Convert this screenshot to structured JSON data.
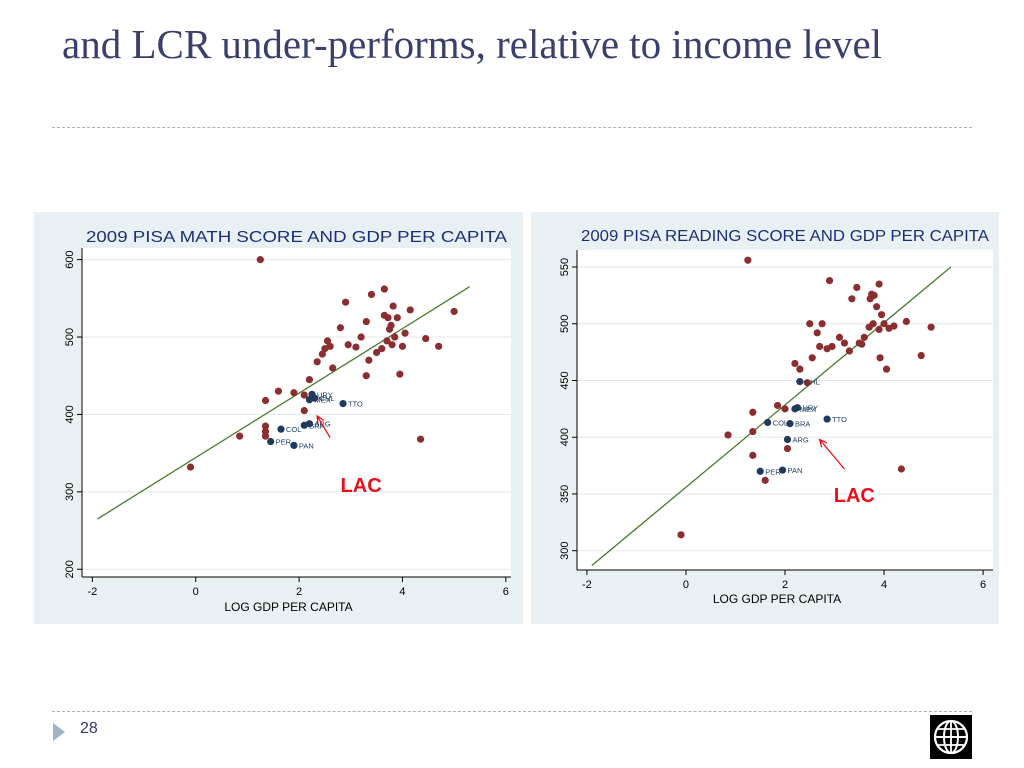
{
  "slide": {
    "title": "and LCR under-performs, relative to income level",
    "page_number": "28"
  },
  "icons": {
    "nav": "play-arrow-icon",
    "logo": "world-bank-globe-icon"
  },
  "colors": {
    "point": "#8b2e30",
    "lac_point": "#1f3a5f",
    "fit_line": "#4a7a2a",
    "annotation": "#e8101a"
  },
  "chart_data": [
    {
      "type": "scatter",
      "title": "2009 PISA MATH SCORE AND GDP PER CAPITA",
      "xlabel": "LOG GDP PER CAPITA",
      "ylabel": "",
      "xlim": [
        -2.2,
        6.1
      ],
      "ylim": [
        190,
        615
      ],
      "xticks": [
        -2,
        0,
        2,
        4,
        6
      ],
      "yticks": [
        200,
        300,
        400,
        500,
        600
      ],
      "grid": true,
      "fit_line": [
        [
          -1.9,
          265
        ],
        [
          5.3,
          565
        ]
      ],
      "annotation": {
        "text": "LAC",
        "x": 3.2,
        "y": 300,
        "arrow_from": [
          2.6,
          370
        ],
        "arrow_to": [
          2.35,
          398
        ]
      },
      "points": [
        [
          1.25,
          600
        ],
        [
          -0.1,
          332
        ],
        [
          0.85,
          372
        ],
        [
          1.35,
          418
        ],
        [
          1.35,
          385
        ],
        [
          1.35,
          378
        ],
        [
          1.35,
          372
        ],
        [
          1.6,
          430
        ],
        [
          1.9,
          428
        ],
        [
          2.1,
          425
        ],
        [
          2.1,
          405
        ],
        [
          2.2,
          445
        ],
        [
          2.35,
          468
        ],
        [
          2.45,
          478
        ],
        [
          2.5,
          485
        ],
        [
          2.55,
          495
        ],
        [
          2.6,
          488
        ],
        [
          2.65,
          460
        ],
        [
          2.8,
          512
        ],
        [
          2.9,
          545
        ],
        [
          2.95,
          490
        ],
        [
          3.1,
          487
        ],
        [
          3.2,
          500
        ],
        [
          3.3,
          450
        ],
        [
          3.3,
          520
        ],
        [
          3.35,
          470
        ],
        [
          3.4,
          555
        ],
        [
          3.5,
          480
        ],
        [
          3.6,
          485
        ],
        [
          3.65,
          562
        ],
        [
          3.65,
          528
        ],
        [
          3.7,
          495
        ],
        [
          3.72,
          525
        ],
        [
          3.75,
          510
        ],
        [
          3.78,
          515
        ],
        [
          3.8,
          490
        ],
        [
          3.82,
          540
        ],
        [
          3.85,
          500
        ],
        [
          3.9,
          525
        ],
        [
          3.95,
          452
        ],
        [
          4.0,
          488
        ],
        [
          4.05,
          505
        ],
        [
          4.15,
          535
        ],
        [
          4.35,
          368
        ],
        [
          4.45,
          498
        ],
        [
          4.7,
          488
        ],
        [
          5.0,
          533
        ]
      ],
      "lac_points": [
        {
          "label": "URY",
          "x": 2.25,
          "y": 426
        },
        {
          "label": "MEX",
          "x": 2.2,
          "y": 419
        },
        {
          "label": "CHL",
          "x": 2.3,
          "y": 421
        },
        {
          "label": "ARG",
          "x": 2.2,
          "y": 388
        },
        {
          "label": "BRA",
          "x": 2.1,
          "y": 386
        },
        {
          "label": "TTO",
          "x": 2.85,
          "y": 414
        },
        {
          "label": "COL",
          "x": 1.65,
          "y": 381
        },
        {
          "label": "PER",
          "x": 1.45,
          "y": 365
        },
        {
          "label": "PAN",
          "x": 1.9,
          "y": 360
        }
      ]
    },
    {
      "type": "scatter",
      "title": "2009 PISA READING SCORE AND GDP PER CAPITA",
      "xlabel": "LOG GDP PER CAPITA",
      "ylabel": "",
      "xlim": [
        -2.2,
        6.2
      ],
      "ylim": [
        283,
        565
      ],
      "xticks": [
        -2,
        0,
        2,
        4,
        6
      ],
      "yticks": [
        300,
        350,
        400,
        450,
        500,
        550
      ],
      "grid": true,
      "fit_line": [
        [
          -1.9,
          287
        ],
        [
          5.35,
          550
        ]
      ],
      "annotation": {
        "text": "LAC",
        "x": 3.4,
        "y": 343,
        "arrow_from": [
          3.2,
          372
        ],
        "arrow_to": [
          2.7,
          398
        ]
      },
      "points": [
        [
          1.25,
          556
        ],
        [
          -0.1,
          314
        ],
        [
          0.85,
          402
        ],
        [
          1.35,
          422
        ],
        [
          1.35,
          405
        ],
        [
          1.35,
          384
        ],
        [
          1.6,
          362
        ],
        [
          1.85,
          428
        ],
        [
          2.0,
          425
        ],
        [
          2.05,
          390
        ],
        [
          2.2,
          465
        ],
        [
          2.3,
          460
        ],
        [
          2.45,
          448
        ],
        [
          2.5,
          500
        ],
        [
          2.55,
          470
        ],
        [
          2.65,
          492
        ],
        [
          2.7,
          480
        ],
        [
          2.75,
          500
        ],
        [
          2.85,
          478
        ],
        [
          2.9,
          538
        ],
        [
          2.95,
          480
        ],
        [
          3.1,
          488
        ],
        [
          3.2,
          483
        ],
        [
          3.3,
          476
        ],
        [
          3.35,
          522
        ],
        [
          3.45,
          532
        ],
        [
          3.5,
          483
        ],
        [
          3.55,
          482
        ],
        [
          3.6,
          488
        ],
        [
          3.7,
          497
        ],
        [
          3.72,
          522
        ],
        [
          3.75,
          526
        ],
        [
          3.78,
          500
        ],
        [
          3.8,
          525
        ],
        [
          3.85,
          515
        ],
        [
          3.9,
          535
        ],
        [
          3.9,
          495
        ],
        [
          3.92,
          470
        ],
        [
          3.95,
          508
        ],
        [
          4.0,
          500
        ],
        [
          4.05,
          460
        ],
        [
          4.1,
          496
        ],
        [
          4.2,
          498
        ],
        [
          4.35,
          372
        ],
        [
          4.45,
          502
        ],
        [
          4.75,
          472
        ],
        [
          4.95,
          497
        ]
      ],
      "lac_points": [
        {
          "label": "CHL",
          "x": 2.3,
          "y": 449
        },
        {
          "label": "URY",
          "x": 2.25,
          "y": 426
        },
        {
          "label": "MEX",
          "x": 2.2,
          "y": 425
        },
        {
          "label": "TTO",
          "x": 2.85,
          "y": 416
        },
        {
          "label": "COL",
          "x": 1.65,
          "y": 413
        },
        {
          "label": "BRA",
          "x": 2.1,
          "y": 412
        },
        {
          "label": "ARG",
          "x": 2.05,
          "y": 398
        },
        {
          "label": "PER",
          "x": 1.5,
          "y": 370
        },
        {
          "label": "PAN",
          "x": 1.95,
          "y": 371
        }
      ]
    }
  ]
}
